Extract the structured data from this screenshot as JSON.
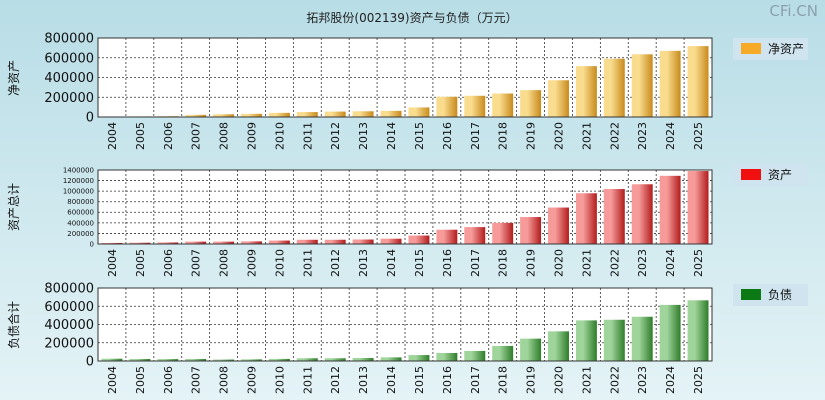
{
  "watermark": "CFi.CN",
  "title": "拓邦股份(002139)资产与负债（万元）",
  "colors": {
    "background_top": "#b8dde6",
    "background_bottom": "#e4f3f6",
    "legend_bg": "#cfe4ee",
    "plot_bg": "#ffffff",
    "orange_light": "#f9dc8e",
    "orange_dark": "#c88a1c",
    "red_light": "#f69a9a",
    "red_dark": "#b21c1c",
    "green_light": "#9fd49a",
    "green_dark": "#2e7d2a",
    "legend_orange": "#f7a928",
    "legend_red": "#f01010",
    "legend_green": "#0b7a14"
  },
  "chart_data": [
    {
      "type": "bar",
      "ylabel": "净资产",
      "legend": "净资产",
      "ylim": [
        0,
        800000
      ],
      "yticks": [
        "0",
        "200000",
        "400000",
        "600000",
        "800000"
      ],
      "categories": [
        "2004",
        "2005",
        "2006",
        "2007",
        "2008",
        "2009",
        "2010",
        "2011",
        "2012",
        "2013",
        "2014",
        "2015",
        "2016",
        "2017",
        "2018",
        "2019",
        "2020",
        "2021",
        "2022",
        "2023",
        "2024",
        "2025"
      ],
      "values": [
        5000,
        6000,
        8000,
        22000,
        28000,
        32000,
        42000,
        50000,
        55000,
        58000,
        62000,
        97000,
        205000,
        215000,
        238000,
        272000,
        372000,
        515000,
        590000,
        635000,
        670000,
        718000
      ],
      "grid": true
    },
    {
      "type": "bar",
      "ylabel": "资产总计",
      "legend": "资产",
      "ylim": [
        0,
        1400000
      ],
      "yticks": [
        "0",
        "200000",
        "400000",
        "600000",
        "800000",
        "1000000",
        "1200000",
        "1400000"
      ],
      "categories": [
        "2004",
        "2005",
        "2006",
        "2007",
        "2008",
        "2009",
        "2010",
        "2011",
        "2012",
        "2013",
        "2014",
        "2015",
        "2016",
        "2017",
        "2018",
        "2019",
        "2020",
        "2021",
        "2022",
        "2023",
        "2024",
        "2025"
      ],
      "values": [
        20000,
        25000,
        30000,
        45000,
        45000,
        50000,
        65000,
        80000,
        80000,
        85000,
        100000,
        160000,
        270000,
        320000,
        400000,
        510000,
        690000,
        960000,
        1040000,
        1130000,
        1290000,
        1380000
      ],
      "grid": true
    },
    {
      "type": "bar",
      "ylabel": "负债合计",
      "legend": "负债",
      "ylim": [
        0,
        800000
      ],
      "yticks": [
        "0",
        "200000",
        "400000",
        "600000",
        "800000"
      ],
      "categories": [
        "2004",
        "2005",
        "2006",
        "2007",
        "2008",
        "2009",
        "2010",
        "2011",
        "2012",
        "2013",
        "2014",
        "2015",
        "2016",
        "2017",
        "2018",
        "2019",
        "2020",
        "2021",
        "2022",
        "2023",
        "2024",
        "2025"
      ],
      "values": [
        25000,
        22000,
        21000,
        22000,
        16000,
        18000,
        23000,
        30000,
        30000,
        33000,
        40000,
        65000,
        88000,
        110000,
        165000,
        245000,
        325000,
        445000,
        452000,
        485000,
        615000,
        665000
      ],
      "grid": true
    }
  ]
}
